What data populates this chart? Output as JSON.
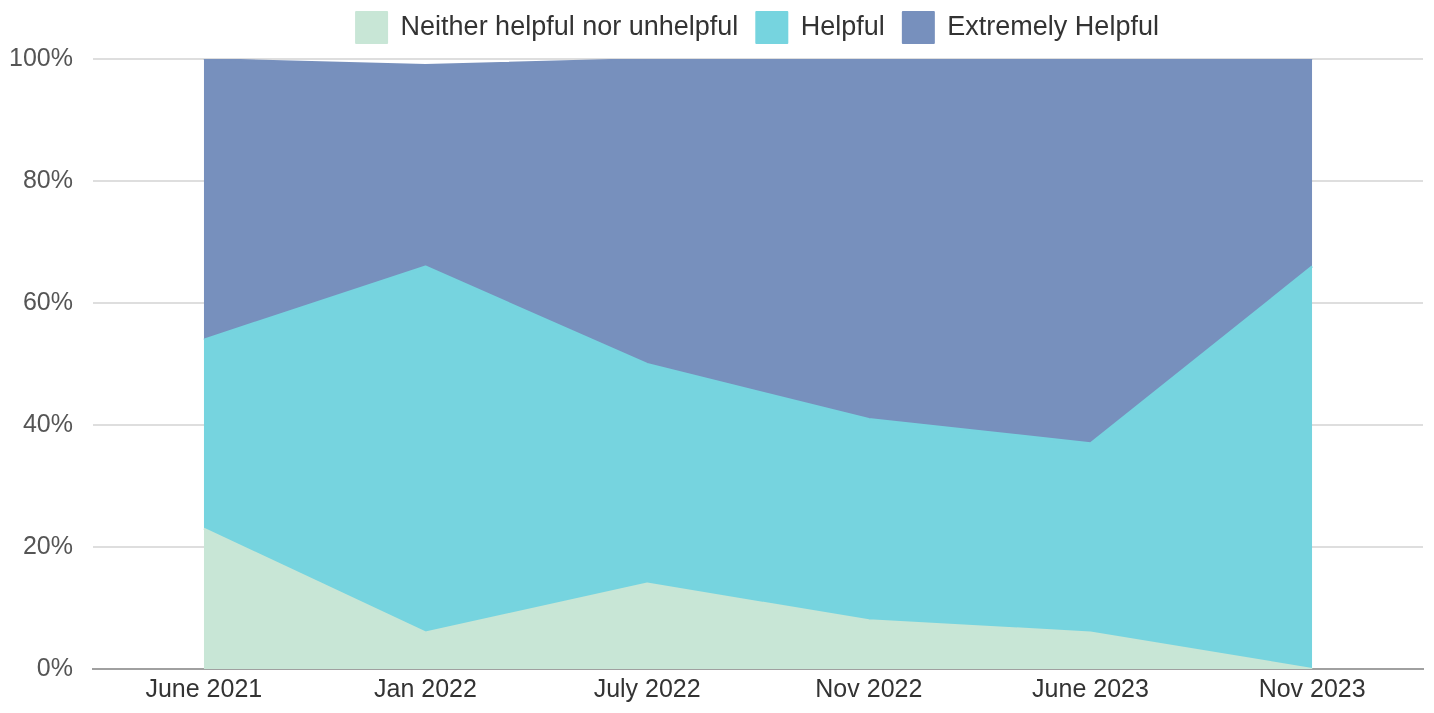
{
  "chart_data": {
    "type": "area",
    "stacked": true,
    "legend": "top",
    "grid": true,
    "categories": [
      "June 2021",
      "Jan 2022",
      "July 2022",
      "Nov 2022",
      "June 2023",
      "Nov 2023"
    ],
    "series": [
      {
        "name": "Neither helpful nor unhelpful",
        "color": "#c8e6d6",
        "values": [
          23,
          6,
          14,
          8,
          6,
          0
        ]
      },
      {
        "name": "Helpful",
        "color": "#76d4df",
        "values": [
          31,
          60,
          36,
          33,
          31,
          66
        ]
      },
      {
        "name": "Extremely Helpful",
        "color": "#7790bd",
        "values": [
          46,
          33,
          50,
          59,
          63,
          34
        ]
      }
    ],
    "ylim": [
      0,
      100
    ],
    "yticks": [
      {
        "value": 0,
        "label": "0%"
      },
      {
        "value": 20,
        "label": "20%"
      },
      {
        "value": 40,
        "label": "40%"
      },
      {
        "value": 60,
        "label": "60%"
      },
      {
        "value": 80,
        "label": "80%"
      },
      {
        "value": 100,
        "label": "100%"
      }
    ]
  }
}
